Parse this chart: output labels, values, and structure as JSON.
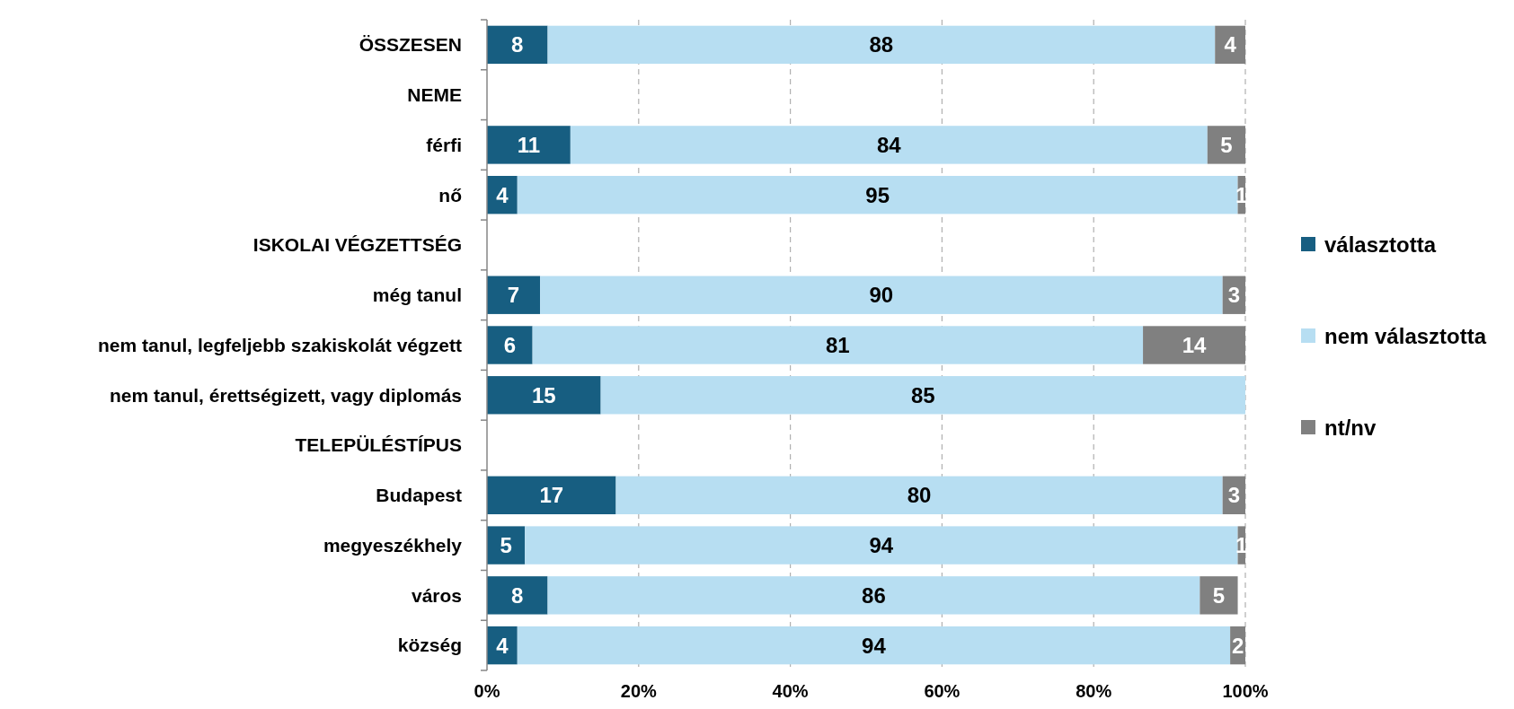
{
  "chart_data": {
    "type": "bar",
    "orientation": "horizontal",
    "stacked": true,
    "categories": [
      "ÖSSZESEN",
      "NEME",
      "férfi",
      "nő",
      "ISKOLAI VÉGZETTSÉG",
      "még tanul",
      "nem tanul, legfeljebb szakiskolát végzett",
      "nem tanul, érettségizett, vagy diplomás",
      "TELEPÜLÉSTÍPUS",
      "Budapest",
      "megyeszékhely",
      "város",
      "község"
    ],
    "series": [
      {
        "name": "választotta",
        "color": "#175e81",
        "values": [
          8,
          null,
          11,
          4,
          null,
          7,
          6,
          15,
          null,
          17,
          5,
          8,
          4
        ],
        "value_labels": [
          "8",
          null,
          "11",
          "4",
          null,
          "7",
          "6",
          "15",
          null,
          "17",
          "5",
          "8",
          "4"
        ]
      },
      {
        "name": "nem választotta",
        "color": "#b7def2",
        "values": [
          88,
          null,
          84,
          95,
          null,
          90,
          80.5,
          85,
          null,
          80,
          94,
          86,
          94
        ],
        "value_labels": [
          "88",
          null,
          "84",
          "95",
          null,
          "90",
          "81",
          "85",
          null,
          "80",
          "94",
          "86",
          "94"
        ]
      },
      {
        "name": "nt/nv",
        "color": "#808080",
        "values": [
          4,
          null,
          5,
          1,
          null,
          3,
          13.5,
          null,
          null,
          3,
          1,
          5,
          2
        ],
        "value_labels": [
          "4",
          null,
          "5",
          "1",
          null,
          "3",
          "14",
          null,
          null,
          "3",
          "1",
          "5",
          "2"
        ]
      }
    ],
    "xlim": [
      0,
      100
    ],
    "xticks": [
      {
        "value": 0,
        "label": "0%"
      },
      {
        "value": 20,
        "label": "20%"
      },
      {
        "value": 40,
        "label": "40%"
      },
      {
        "value": 60,
        "label": "60%"
      },
      {
        "value": 80,
        "label": "80%"
      },
      {
        "value": 100,
        "label": "100%"
      }
    ],
    "grid": "x",
    "legend": "right"
  }
}
